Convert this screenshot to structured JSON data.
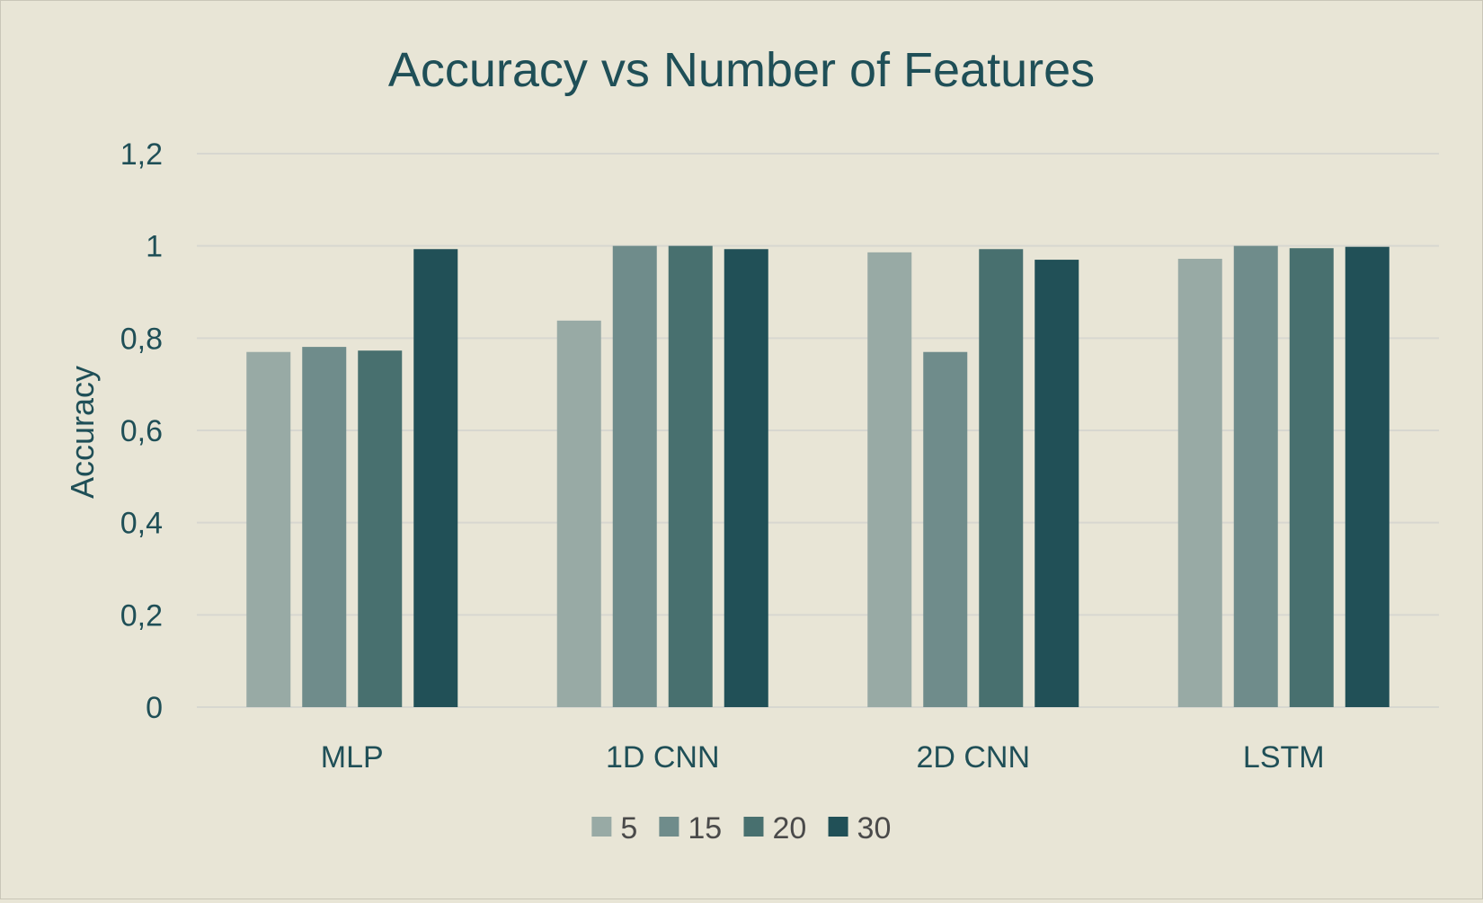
{
  "chart_data": {
    "type": "bar",
    "title": "Accuracy vs Number of Features",
    "xlabel": "",
    "ylabel": "Accuracy",
    "categories": [
      "MLP",
      "1D CNN",
      "2D CNN",
      "LSTM"
    ],
    "series": [
      {
        "name": "5",
        "color": "#98aaa5",
        "values": [
          0.77,
          0.838,
          0.986,
          0.972
        ]
      },
      {
        "name": "15",
        "color": "#6f8c8b",
        "values": [
          0.781,
          1.0,
          0.77,
          1.0
        ]
      },
      {
        "name": "20",
        "color": "#48706f",
        "values": [
          0.773,
          1.0,
          0.993,
          0.995
        ]
      },
      {
        "name": "30",
        "color": "#215057",
        "values": [
          0.993,
          0.993,
          0.97,
          0.998
        ]
      }
    ],
    "ylim": [
      0,
      1.2
    ],
    "yticks": [
      0,
      0.2,
      0.4,
      0.6,
      0.8,
      1,
      1.2
    ],
    "ytick_labels": [
      "0",
      "0,2",
      "0,4",
      "0,6",
      "0,8",
      "1",
      "1,2"
    ],
    "grid": true,
    "legend_position": "bottom",
    "colors": {
      "background": "#e8e5d6",
      "text": "#1f4f57",
      "gridline": "#d7d7d0",
      "legend_text": "#4a4a4a"
    }
  }
}
